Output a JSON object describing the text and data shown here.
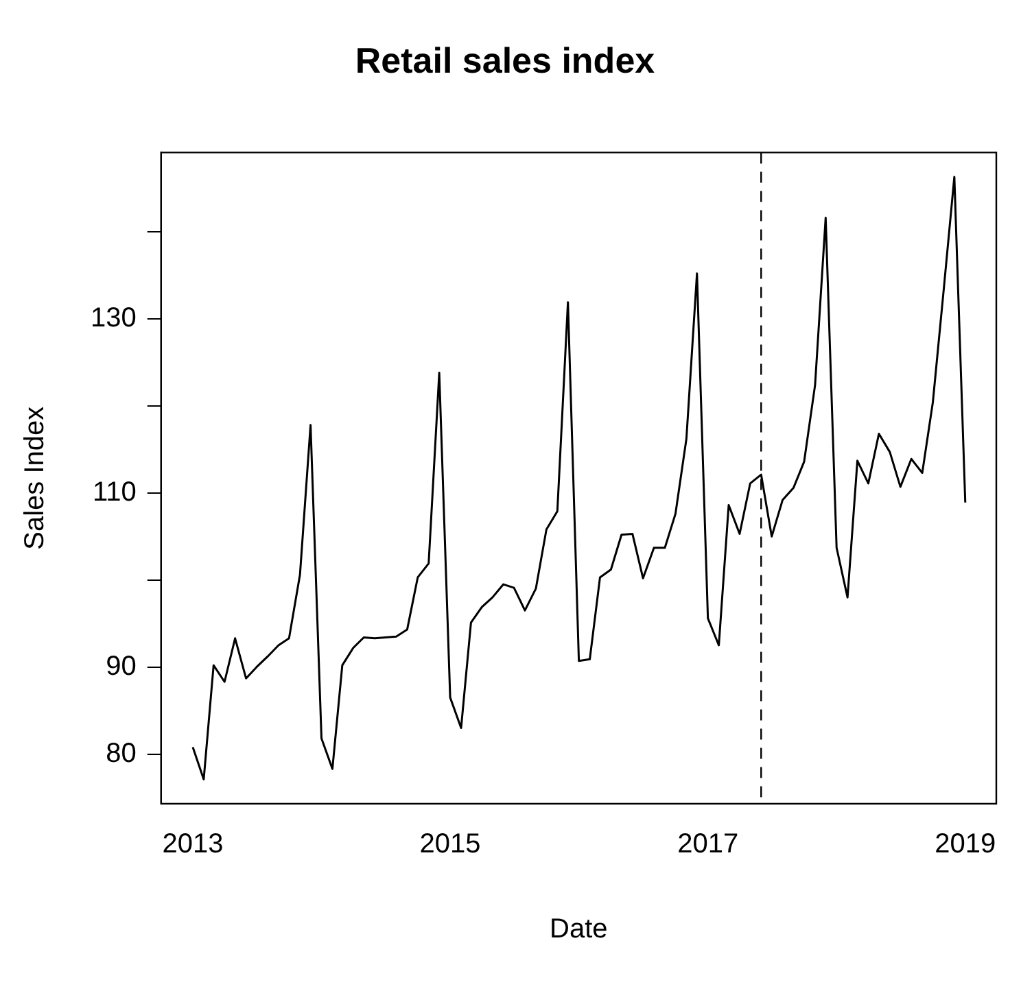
{
  "chart_data": {
    "type": "line",
    "title": "Retail sales index",
    "xlabel": "Date",
    "ylabel": "Sales Index",
    "x": [
      "2013-01",
      "2013-02",
      "2013-03",
      "2013-04",
      "2013-05",
      "2013-06",
      "2013-07",
      "2013-08",
      "2013-09",
      "2013-10",
      "2013-11",
      "2013-12",
      "2014-01",
      "2014-02",
      "2014-03",
      "2014-04",
      "2014-05",
      "2014-06",
      "2014-07",
      "2014-08",
      "2014-09",
      "2014-10",
      "2014-11",
      "2014-12",
      "2015-01",
      "2015-02",
      "2015-03",
      "2015-04",
      "2015-05",
      "2015-06",
      "2015-07",
      "2015-08",
      "2015-09",
      "2015-10",
      "2015-11",
      "2015-12",
      "2016-01",
      "2016-02",
      "2016-03",
      "2016-04",
      "2016-05",
      "2016-06",
      "2016-07",
      "2016-08",
      "2016-09",
      "2016-10",
      "2016-11",
      "2016-12",
      "2017-01",
      "2017-02",
      "2017-03",
      "2017-04",
      "2017-05",
      "2017-06",
      "2017-07",
      "2017-08",
      "2017-09",
      "2017-10",
      "2017-11",
      "2017-12",
      "2018-01",
      "2018-02",
      "2018-03",
      "2018-04",
      "2018-05",
      "2018-06",
      "2018-07",
      "2018-08",
      "2018-09",
      "2018-10",
      "2018-11",
      "2018-12",
      "2019-01"
    ],
    "series": [
      {
        "color": "#000000",
        "values": [
          80.8,
          77.1,
          90.2,
          88.3,
          93.3,
          88.7,
          90,
          91.2,
          92.5,
          93.3,
          100.6,
          117.8,
          81.8,
          78.3,
          90.2,
          92.2,
          93.4,
          93.3,
          93.4,
          93.5,
          94.3,
          100.3,
          101.9,
          123.8,
          86.5,
          83,
          95.1,
          96.9,
          98,
          99.5,
          99.1,
          96.5,
          99,
          105.8,
          107.9,
          131.9,
          90.7,
          90.9,
          100.3,
          101.2,
          105.2,
          105.3,
          100.2,
          103.7,
          103.7,
          107.6,
          116.2,
          135.2,
          95.6,
          92.5,
          108.6,
          105.3,
          111.1,
          112.1,
          105,
          109.2,
          110.6,
          113.6,
          122.4,
          141.6,
          103.7,
          98,
          113.7,
          111.1,
          116.8,
          114.7,
          110.7,
          113.9,
          112.3,
          120.4,
          133.4,
          146.3,
          108.9
        ]
      }
    ],
    "xlim": [
      "2012-10-03",
      "2019-03-30"
    ],
    "ylim": [
      74.3,
      149.1
    ],
    "xticks": [
      {
        "value": "2013-01",
        "label": "2013"
      },
      {
        "value": "2015-01",
        "label": "2015"
      },
      {
        "value": "2017-01",
        "label": "2017"
      },
      {
        "value": "2019-01",
        "label": "2019"
      }
    ],
    "yticks": [
      80,
      90,
      {
        "value": 100,
        "label": null
      },
      110,
      {
        "value": 120,
        "label": null
      },
      130,
      {
        "value": 140,
        "label": null
      }
    ],
    "ref_lines": [
      {
        "axis": "x",
        "value": "2017-06",
        "line_style": "dashed",
        "color": "#000000"
      }
    ],
    "grid": false,
    "legend": false,
    "marker": "none",
    "line_style": "solid"
  }
}
